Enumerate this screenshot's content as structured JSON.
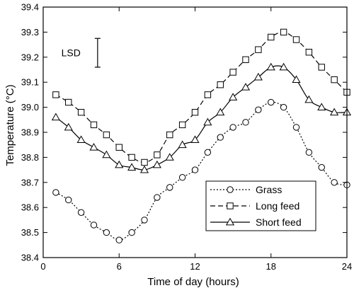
{
  "chart_data": {
    "type": "line",
    "xlabel": "Time of day (hours)",
    "ylabel": "Temperature (°C)",
    "xlim": [
      0,
      24
    ],
    "ylim": [
      38.4,
      39.4
    ],
    "xticks": [
      0,
      6,
      12,
      18,
      24
    ],
    "yticks": [
      38.4,
      38.5,
      38.6,
      38.7,
      38.8,
      38.9,
      39.0,
      39.1,
      39.2,
      39.3,
      39.4
    ],
    "ytick_labels": [
      "38.4",
      "38.5",
      "38.6",
      "38.7",
      "38.8",
      "38.9",
      "39.0",
      "39.1",
      "39.2",
      "39.3",
      "39.4"
    ],
    "xtick_labels": [
      "0",
      "6",
      "12",
      "18",
      "24"
    ],
    "grid": false,
    "legend_position": "bottom-right",
    "lsd": {
      "label": "LSD",
      "x": 4.3,
      "y_low": 39.16,
      "y_high": 39.275
    },
    "series": [
      {
        "name": "Grass",
        "marker": "circle",
        "line_style": "dotted",
        "x": [
          1,
          2,
          3,
          4,
          5,
          6,
          7,
          8,
          9,
          10,
          11,
          12,
          13,
          14,
          15,
          16,
          17,
          18,
          19,
          20,
          21,
          22,
          23,
          24
        ],
        "values": [
          38.66,
          38.63,
          38.58,
          38.53,
          38.5,
          38.47,
          38.5,
          38.55,
          38.64,
          38.68,
          38.72,
          38.75,
          38.82,
          38.88,
          38.92,
          38.94,
          38.99,
          39.02,
          39.0,
          38.92,
          38.82,
          38.76,
          38.7,
          38.69
        ]
      },
      {
        "name": "Long feed",
        "marker": "square",
        "line_style": "dashed",
        "x": [
          1,
          2,
          3,
          4,
          5,
          6,
          7,
          8,
          9,
          10,
          11,
          12,
          13,
          14,
          15,
          16,
          17,
          18,
          19,
          20,
          21,
          22,
          23,
          24
        ],
        "values": [
          39.05,
          39.02,
          38.98,
          38.93,
          38.89,
          38.84,
          38.8,
          38.78,
          38.81,
          38.89,
          38.93,
          38.98,
          39.05,
          39.09,
          39.14,
          39.19,
          39.23,
          39.28,
          39.3,
          39.27,
          39.22,
          39.16,
          39.11,
          39.06
        ]
      },
      {
        "name": "Short feed",
        "marker": "triangle",
        "line_style": "solid",
        "x": [
          1,
          2,
          3,
          4,
          5,
          6,
          7,
          8,
          9,
          10,
          11,
          12,
          13,
          14,
          15,
          16,
          17,
          18,
          19,
          20,
          21,
          22,
          23,
          24
        ],
        "values": [
          38.96,
          38.92,
          38.87,
          38.84,
          38.81,
          38.77,
          38.76,
          38.75,
          38.77,
          38.8,
          38.85,
          38.87,
          38.94,
          38.98,
          39.04,
          39.08,
          39.12,
          39.16,
          39.16,
          39.11,
          39.03,
          39.0,
          38.98,
          38.98
        ]
      }
    ]
  }
}
